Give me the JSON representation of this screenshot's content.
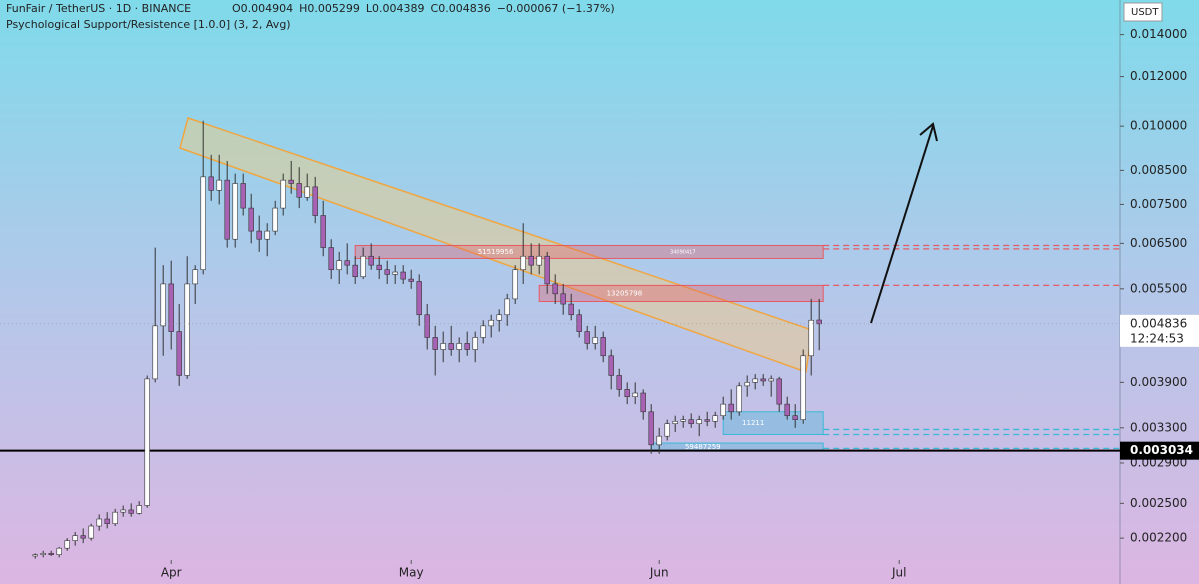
{
  "chart_data": {
    "type": "candlestick",
    "title": "FunFair / TetherUS · 1D · BINANCE",
    "ohlc_legend": [
      "O0.004904",
      "H0.005299",
      "L0.004389",
      "C0.004836",
      "−0.000067 (−1.37%)"
    ],
    "indicator": "Psychological Support/Resistence [1.0.0] (3, 2, Avg)",
    "currency": "USDT",
    "log_scale": true,
    "up_color": "#ffffff",
    "down_color": "#a862b4",
    "ylim": [
      0.00203,
      0.0159
    ],
    "yticks": [
      {
        "value": 0.014,
        "label": "0.014000"
      },
      {
        "value": 0.012,
        "label": "0.012000"
      },
      {
        "value": 0.01,
        "label": "0.010000"
      },
      {
        "value": 0.0085,
        "label": "0.008500"
      },
      {
        "value": 0.0075,
        "label": "0.007500"
      },
      {
        "value": 0.0065,
        "label": "0.006500"
      },
      {
        "value": 0.0055,
        "label": "0.005500"
      },
      {
        "value": 0.0039,
        "label": "0.003900"
      },
      {
        "value": 0.0033,
        "label": "0.003300"
      },
      {
        "value": 0.0029,
        "label": "0.002900"
      },
      {
        "value": 0.0025,
        "label": "0.002500"
      },
      {
        "value": 0.0022,
        "label": "0.002200"
      }
    ],
    "xlim": [
      -4.4,
      135.6
    ],
    "xticks": [
      {
        "value": 17,
        "label": "Apr"
      },
      {
        "value": 47,
        "label": "May"
      },
      {
        "value": 78,
        "label": "Jun"
      },
      {
        "value": 108,
        "label": "Jul"
      }
    ],
    "ohlc": [
      [
        0.00206,
        0.00208,
        0.00204,
        0.00207
      ],
      [
        0.00207,
        0.0021,
        0.00205,
        0.00208
      ],
      [
        0.00208,
        0.0021,
        0.00206,
        0.00207
      ],
      [
        0.00207,
        0.00213,
        0.00205,
        0.00212
      ],
      [
        0.00212,
        0.0022,
        0.0021,
        0.00218
      ],
      [
        0.00218,
        0.00225,
        0.00214,
        0.00222
      ],
      [
        0.00222,
        0.00228,
        0.00216,
        0.0022
      ],
      [
        0.0022,
        0.00232,
        0.00218,
        0.0023
      ],
      [
        0.0023,
        0.0024,
        0.00226,
        0.00236
      ],
      [
        0.00236,
        0.00242,
        0.00228,
        0.00232
      ],
      [
        0.00232,
        0.00245,
        0.0023,
        0.00242
      ],
      [
        0.00242,
        0.00248,
        0.00238,
        0.00244
      ],
      [
        0.00244,
        0.0025,
        0.00238,
        0.00241
      ],
      [
        0.00241,
        0.00252,
        0.0024,
        0.00248
      ],
      [
        0.00248,
        0.004,
        0.00246,
        0.00395
      ],
      [
        0.00395,
        0.0064,
        0.0039,
        0.0048
      ],
      [
        0.0048,
        0.006,
        0.0043,
        0.0056
      ],
      [
        0.0056,
        0.0061,
        0.0044,
        0.0047
      ],
      [
        0.0047,
        0.0052,
        0.00385,
        0.004
      ],
      [
        0.004,
        0.0062,
        0.00395,
        0.0056
      ],
      [
        0.0056,
        0.006,
        0.0052,
        0.0059
      ],
      [
        0.0059,
        0.0102,
        0.0058,
        0.0083
      ],
      [
        0.0083,
        0.009,
        0.0076,
        0.0079
      ],
      [
        0.0079,
        0.009,
        0.0075,
        0.0082
      ],
      [
        0.0082,
        0.0088,
        0.0064,
        0.0066
      ],
      [
        0.0066,
        0.0084,
        0.0064,
        0.0081
      ],
      [
        0.0081,
        0.0084,
        0.0072,
        0.0074
      ],
      [
        0.0074,
        0.0078,
        0.0065,
        0.0068
      ],
      [
        0.0068,
        0.0072,
        0.0063,
        0.0066
      ],
      [
        0.0066,
        0.007,
        0.0062,
        0.0068
      ],
      [
        0.0068,
        0.0076,
        0.0067,
        0.0074
      ],
      [
        0.0074,
        0.0084,
        0.0072,
        0.0082
      ],
      [
        0.0082,
        0.0088,
        0.0078,
        0.0081
      ],
      [
        0.0081,
        0.0086,
        0.0074,
        0.0077
      ],
      [
        0.0077,
        0.0084,
        0.0076,
        0.008
      ],
      [
        0.008,
        0.0083,
        0.007,
        0.0072
      ],
      [
        0.0072,
        0.0076,
        0.0062,
        0.0064
      ],
      [
        0.0064,
        0.0066,
        0.0057,
        0.0059
      ],
      [
        0.0059,
        0.0063,
        0.0056,
        0.0061
      ],
      [
        0.0061,
        0.0065,
        0.0058,
        0.006
      ],
      [
        0.006,
        0.0062,
        0.0056,
        0.00575
      ],
      [
        0.00575,
        0.0064,
        0.0057,
        0.0062
      ],
      [
        0.0062,
        0.0065,
        0.0059,
        0.006
      ],
      [
        0.006,
        0.0062,
        0.0057,
        0.0059
      ],
      [
        0.0059,
        0.0061,
        0.0056,
        0.0058
      ],
      [
        0.0058,
        0.006,
        0.0056,
        0.00585
      ],
      [
        0.00585,
        0.006,
        0.0056,
        0.0057
      ],
      [
        0.0057,
        0.0059,
        0.0055,
        0.00565
      ],
      [
        0.00565,
        0.0058,
        0.0048,
        0.005
      ],
      [
        0.005,
        0.0052,
        0.0044,
        0.0046
      ],
      [
        0.0046,
        0.0048,
        0.004,
        0.0044
      ],
      [
        0.0044,
        0.0047,
        0.0042,
        0.0045
      ],
      [
        0.0045,
        0.0048,
        0.0043,
        0.0044
      ],
      [
        0.0044,
        0.0046,
        0.0042,
        0.0045
      ],
      [
        0.0045,
        0.0047,
        0.0043,
        0.0044
      ],
      [
        0.0044,
        0.0047,
        0.0042,
        0.0046
      ],
      [
        0.0046,
        0.0049,
        0.0045,
        0.0048
      ],
      [
        0.0048,
        0.005,
        0.0046,
        0.0049
      ],
      [
        0.0049,
        0.0051,
        0.0047,
        0.005
      ],
      [
        0.005,
        0.0054,
        0.0048,
        0.0053
      ],
      [
        0.0053,
        0.006,
        0.0052,
        0.0059
      ],
      [
        0.0059,
        0.007,
        0.0056,
        0.0062
      ],
      [
        0.0062,
        0.0065,
        0.0058,
        0.006
      ],
      [
        0.006,
        0.0065,
        0.0058,
        0.0062
      ],
      [
        0.0062,
        0.0063,
        0.0054,
        0.0056
      ],
      [
        0.0056,
        0.0058,
        0.0052,
        0.0054
      ],
      [
        0.0054,
        0.0056,
        0.005,
        0.0052
      ],
      [
        0.0052,
        0.0054,
        0.0049,
        0.005
      ],
      [
        0.005,
        0.0051,
        0.0046,
        0.0047
      ],
      [
        0.0047,
        0.0048,
        0.0044,
        0.0045
      ],
      [
        0.0045,
        0.0048,
        0.0044,
        0.0046
      ],
      [
        0.0046,
        0.0047,
        0.0042,
        0.0043
      ],
      [
        0.0043,
        0.0044,
        0.0038,
        0.004
      ],
      [
        0.004,
        0.0041,
        0.0037,
        0.0038
      ],
      [
        0.0038,
        0.0039,
        0.0036,
        0.0037
      ],
      [
        0.0037,
        0.0039,
        0.0036,
        0.00375
      ],
      [
        0.00375,
        0.0038,
        0.0034,
        0.0035
      ],
      [
        0.0035,
        0.0036,
        0.003,
        0.0031
      ],
      [
        0.0031,
        0.0033,
        0.003,
        0.0032
      ],
      [
        0.0032,
        0.0034,
        0.00315,
        0.00335
      ],
      [
        0.00335,
        0.00345,
        0.00325,
        0.00338
      ],
      [
        0.00338,
        0.00345,
        0.0033,
        0.0034
      ],
      [
        0.0034,
        0.00348,
        0.0033,
        0.00335
      ],
      [
        0.00335,
        0.00345,
        0.0032,
        0.0034
      ],
      [
        0.0034,
        0.0035,
        0.00332,
        0.00338
      ],
      [
        0.00338,
        0.0035,
        0.0033,
        0.00345
      ],
      [
        0.00345,
        0.0037,
        0.0034,
        0.0036
      ],
      [
        0.0036,
        0.0038,
        0.0034,
        0.0035
      ],
      [
        0.0035,
        0.0039,
        0.00345,
        0.00385
      ],
      [
        0.00385,
        0.004,
        0.0037,
        0.0039
      ],
      [
        0.0039,
        0.00402,
        0.0038,
        0.00395
      ],
      [
        0.00395,
        0.00402,
        0.00385,
        0.00392
      ],
      [
        0.00392,
        0.004,
        0.0037,
        0.00395
      ],
      [
        0.00395,
        0.00398,
        0.0035,
        0.0036
      ],
      [
        0.0036,
        0.0037,
        0.0034,
        0.00345
      ],
      [
        0.00345,
        0.0036,
        0.0033,
        0.0034
      ],
      [
        0.0034,
        0.0044,
        0.00335,
        0.0043
      ],
      [
        0.0043,
        0.0053,
        0.004,
        0.0049
      ],
      [
        0.004904,
        0.005299,
        0.004389,
        0.004836
      ]
    ],
    "zones": [
      {
        "labels": [
          "51519956",
          "34090417"
        ],
        "top": 0.00645,
        "bottom": 0.00615,
        "start": 40,
        "color": "#e65a63",
        "level_lines": [
          0.00645,
          0.00637
        ]
      },
      {
        "labels": [
          "13205798"
        ],
        "top": 0.00557,
        "bottom": 0.00525,
        "start": 63,
        "color": "#e65a63",
        "level_lines": [
          0.00557
        ]
      },
      {
        "labels": [
          "11211"
        ],
        "top": 0.0035,
        "bottom": 0.00322,
        "start": 86,
        "color": "#3bb8d6",
        "level_lines": [
          0.00328,
          0.00322
        ]
      },
      {
        "labels": [
          "59487259"
        ],
        "top": 0.00312,
        "bottom": 0.00303,
        "start": 77,
        "color": "#3bb8d6",
        "level_lines": [
          0.00306
        ]
      }
    ],
    "last_price": {
      "value": 0.004836,
      "label": "0.004836",
      "countdown": "12:24:53"
    },
    "support_line": {
      "value": 0.003034,
      "label": "0.003034"
    }
  }
}
